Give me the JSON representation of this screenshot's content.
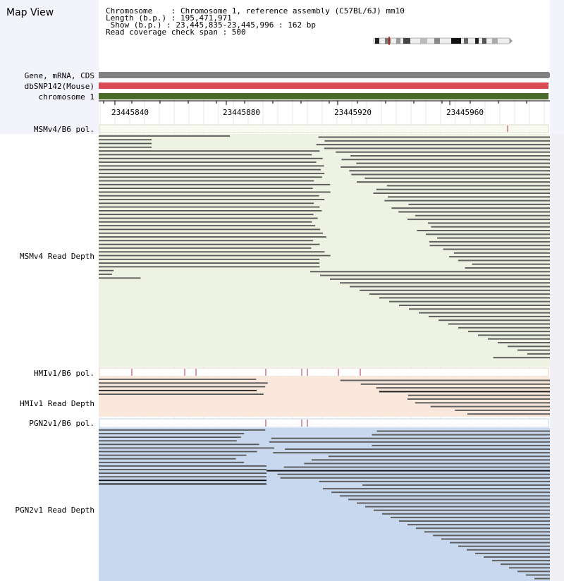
{
  "header": {
    "title": "Map View",
    "info_lines": [
      "Chromosome    : Chromosome 1, reference assembly (C57BL/6J) mm10",
      "Length (b.p.) : 195,471,971",
      " Show (b.p.) : 23,445,835-23,445,996 : 162 bp",
      "Read coverage check span : 500"
    ]
  },
  "tracks": {
    "gene": "Gene, mRNA, CDS",
    "snp": "dbSNP142(Mouse)",
    "chrom": "chromosome 1",
    "msm_pol": "MSMv4/B6 pol.",
    "msm_depth": "MSMv4 Read Depth",
    "hmi_pol": "HMIv1/B6 pol.",
    "hmi_depth": "HMIv1 Read Depth",
    "pgn_pol": "PGN2v1/B6 pol.",
    "pgn_depth": "PGN2v1 Read Depth"
  },
  "ruler": {
    "ticks": [
      "23445840",
      "23445880",
      "23445920",
      "23445960"
    ]
  },
  "colors": {
    "gene_bar": "#808080",
    "snp_bar": "#d94a55",
    "chrom_bar": "#4a6a2a",
    "msm_bg": "#eef2e2",
    "hmi_bg": "#fbe8dc",
    "pgn_bg": "#c8d8ee",
    "read": "#555555",
    "poly": "#b03040"
  },
  "icons": {
    "ideogram": "chromosome-ideogram-icon"
  }
}
